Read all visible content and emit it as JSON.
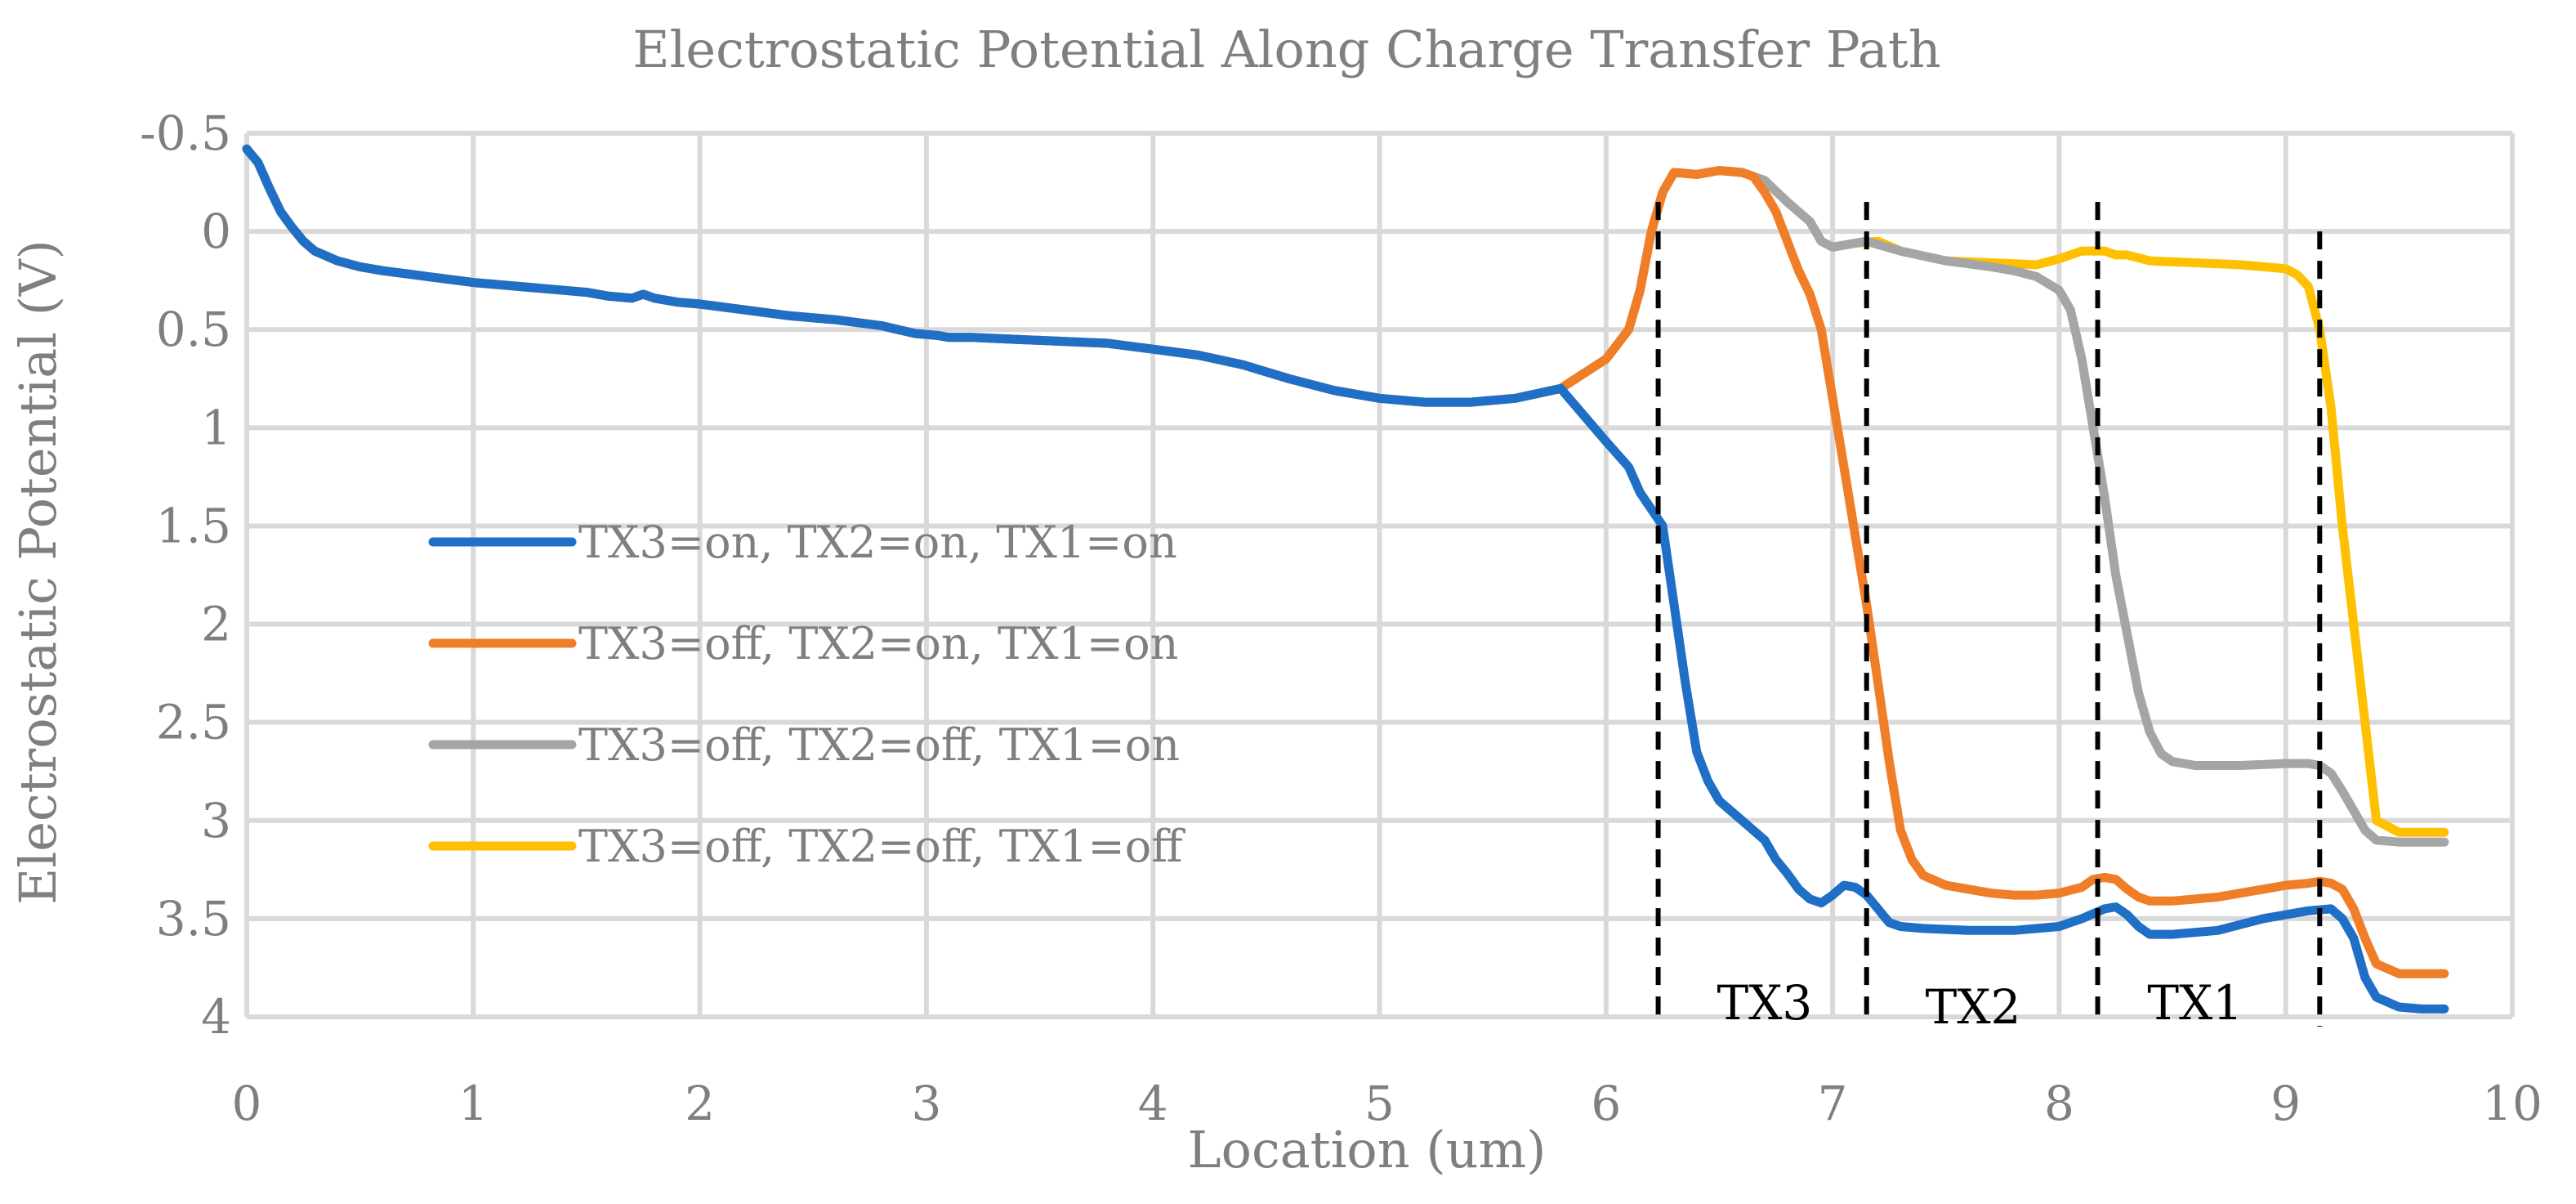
{
  "chart_data": {
    "type": "line",
    "title": "Electrostatic Potential  Along Charge Transfer Path",
    "xlabel": "Location (um)",
    "ylabel": "Electrostatic Potential (V)",
    "xlim": [
      0,
      10
    ],
    "ylim": [
      -0.5,
      4
    ],
    "y_inverted": true,
    "grid": true,
    "legend_position": "center-left",
    "x_ticks": [
      "0",
      "1",
      "2",
      "3",
      "4",
      "5",
      "6",
      "7",
      "8",
      "9",
      "10"
    ],
    "y_ticks": [
      "-0.5",
      "0",
      "0.5",
      "1",
      "1.5",
      "2",
      "2.5",
      "3",
      "3.5",
      "4"
    ],
    "series": [
      {
        "name": "TX3=on, TX2=on, TX1=on",
        "color": "#1f6fc6",
        "x": [
          6.0,
          6.1,
          6.15,
          6.25,
          6.3,
          6.35,
          6.4,
          6.45,
          6.5,
          6.6,
          6.7,
          6.75,
          6.8,
          6.85,
          6.9,
          6.95,
          7.0,
          7.05,
          7.1,
          7.15,
          7.2,
          7.25,
          7.3,
          7.4,
          7.6,
          7.8,
          8.0,
          8.1,
          8.2,
          8.25,
          8.3,
          8.35,
          8.4,
          8.5,
          8.7,
          8.9,
          9.0,
          9.1,
          9.2,
          9.25,
          9.3,
          9.35,
          9.4,
          9.5,
          9.6,
          9.7
        ],
        "y": [
          1.07,
          1.2,
          1.33,
          1.5,
          1.9,
          2.3,
          2.65,
          2.8,
          2.9,
          3.0,
          3.1,
          3.2,
          3.27,
          3.35,
          3.4,
          3.42,
          3.38,
          3.33,
          3.34,
          3.38,
          3.45,
          3.52,
          3.54,
          3.55,
          3.56,
          3.56,
          3.54,
          3.5,
          3.45,
          3.44,
          3.48,
          3.54,
          3.58,
          3.58,
          3.56,
          3.5,
          3.48,
          3.46,
          3.45,
          3.5,
          3.6,
          3.8,
          3.9,
          3.95,
          3.96,
          3.96
        ]
      },
      {
        "name": "TX3=off, TX2=on, TX1=on",
        "color": "#f07d28",
        "x": [
          6.7,
          6.75,
          6.8,
          6.85,
          6.9,
          6.95,
          7.0,
          7.05,
          7.1,
          7.15,
          7.2,
          7.25,
          7.3,
          7.35,
          7.4,
          7.5,
          7.6,
          7.7,
          7.8,
          7.9,
          8.0,
          8.1,
          8.15,
          8.2,
          8.25,
          8.3,
          8.35,
          8.4,
          8.5,
          8.6,
          8.7,
          8.8,
          8.9,
          9.0,
          9.1,
          9.15,
          9.2,
          9.25,
          9.3,
          9.35,
          9.4,
          9.5,
          9.6,
          9.7
        ],
        "y": [
          -0.2,
          -0.1,
          0.05,
          0.2,
          0.32,
          0.5,
          0.85,
          1.2,
          1.55,
          1.9,
          2.3,
          2.7,
          3.05,
          3.2,
          3.28,
          3.33,
          3.35,
          3.37,
          3.38,
          3.38,
          3.37,
          3.34,
          3.3,
          3.29,
          3.3,
          3.35,
          3.39,
          3.41,
          3.41,
          3.4,
          3.39,
          3.37,
          3.35,
          3.33,
          3.32,
          3.31,
          3.32,
          3.35,
          3.45,
          3.6,
          3.73,
          3.78,
          3.78,
          3.78
        ]
      },
      {
        "name": "TX3=off, TX2=off, TX1=on",
        "color": "#a5a5a5",
        "x": [
          7.15,
          7.3,
          7.5,
          7.7,
          7.8,
          7.9,
          8.0,
          8.05,
          8.1,
          8.15,
          8.2,
          8.25,
          8.3,
          8.35,
          8.4,
          8.45,
          8.5,
          8.6,
          8.8,
          9.0,
          9.1,
          9.15,
          9.2,
          9.25,
          9.3,
          9.35,
          9.4,
          9.5,
          9.6,
          9.7
        ],
        "y": [
          0.05,
          0.1,
          0.15,
          0.18,
          0.2,
          0.23,
          0.3,
          0.4,
          0.65,
          1.0,
          1.35,
          1.75,
          2.05,
          2.35,
          2.55,
          2.66,
          2.7,
          2.72,
          2.72,
          2.71,
          2.71,
          2.72,
          2.76,
          2.85,
          2.95,
          3.05,
          3.1,
          3.11,
          3.11,
          3.11
        ]
      },
      {
        "name": "TX3=off, TX2=off, TX1=off",
        "color": "#ffc000",
        "x": [
          0.0,
          0.05,
          0.1,
          0.15,
          0.2,
          0.25,
          0.3,
          0.4,
          0.5,
          0.6,
          0.8,
          1.0,
          1.2,
          1.4,
          1.5,
          1.6,
          1.7,
          1.75,
          1.8,
          1.9,
          2.0,
          2.2,
          2.4,
          2.6,
          2.8,
          2.95,
          3.05,
          3.1,
          3.2,
          3.4,
          3.6,
          3.8,
          4.0,
          4.2,
          4.4,
          4.6,
          4.8,
          5.0,
          5.2,
          5.4,
          5.6,
          5.8,
          6.0,
          6.1,
          6.15,
          6.2,
          6.25,
          6.3,
          6.4,
          6.5,
          6.6,
          6.65,
          6.7,
          6.8,
          6.9,
          6.95,
          7.0,
          7.1,
          7.2,
          7.3,
          7.5,
          7.7,
          7.9,
          8.0,
          8.1,
          8.2,
          8.25,
          8.3,
          8.4,
          8.6,
          8.8,
          9.0,
          9.05,
          9.1,
          9.15,
          9.2,
          9.25,
          9.3,
          9.35,
          9.4,
          9.5,
          9.6,
          9.7
        ],
        "y": [
          -0.42,
          -0.35,
          -0.22,
          -0.1,
          -0.02,
          0.05,
          0.1,
          0.15,
          0.18,
          0.2,
          0.23,
          0.26,
          0.28,
          0.3,
          0.31,
          0.33,
          0.34,
          0.32,
          0.34,
          0.36,
          0.37,
          0.4,
          0.43,
          0.45,
          0.48,
          0.52,
          0.53,
          0.54,
          0.54,
          0.55,
          0.56,
          0.57,
          0.6,
          0.63,
          0.68,
          0.75,
          0.81,
          0.85,
          0.87,
          0.87,
          0.85,
          0.8,
          0.65,
          0.5,
          0.3,
          0.0,
          -0.2,
          -0.3,
          -0.29,
          -0.31,
          -0.3,
          -0.28,
          -0.26,
          -0.15,
          -0.05,
          0.05,
          0.08,
          0.06,
          0.05,
          0.1,
          0.15,
          0.16,
          0.17,
          0.14,
          0.1,
          0.1,
          0.12,
          0.12,
          0.15,
          0.16,
          0.17,
          0.19,
          0.22,
          0.28,
          0.5,
          0.9,
          1.5,
          2.0,
          2.5,
          3.0,
          3.06,
          3.06,
          3.06
        ]
      }
    ],
    "dashed_markers": [
      {
        "x": 6.23,
        "y_top": -0.15,
        "y_bottom": 4.0
      },
      {
        "x": 7.15,
        "y_top": -0.15,
        "y_bottom": 4.0
      },
      {
        "x": 8.17,
        "y_top": -0.15,
        "y_bottom": 4.0
      },
      {
        "x": 9.15,
        "y_top": 0.0,
        "y_bottom": 4.05
      }
    ],
    "region_labels": [
      {
        "text": "TX3",
        "x": 6.7,
        "y": 3.93
      },
      {
        "text": "TX2",
        "x": 7.62,
        "y": 3.95
      },
      {
        "text": "TX1",
        "x": 8.6,
        "y": 3.93
      }
    ]
  }
}
